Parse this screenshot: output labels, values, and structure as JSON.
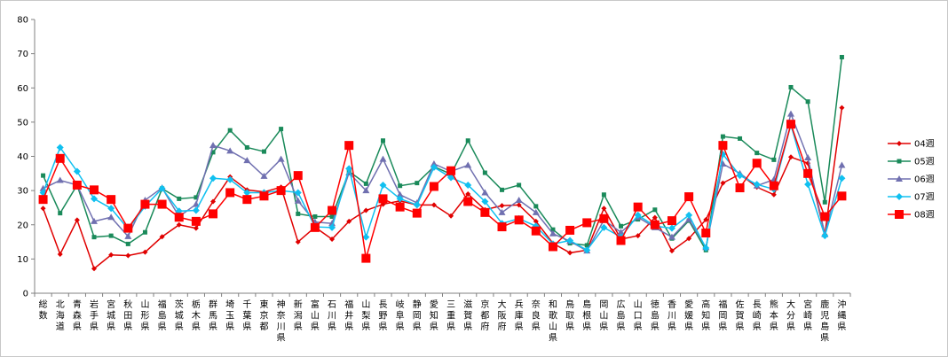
{
  "chart_data": {
    "type": "line",
    "title": "",
    "xlabel": "",
    "ylabel": "",
    "ylim": [
      0,
      80
    ],
    "yticks": [
      0,
      10,
      20,
      30,
      40,
      50,
      60,
      70,
      80
    ],
    "grid": false,
    "legend_position": "right",
    "categories": [
      "総数",
      "北海道",
      "青森県",
      "岩手県",
      "宮城県",
      "秋田県",
      "山形県",
      "福島県",
      "茨城県",
      "栃木県",
      "群馬県",
      "埼玉県",
      "千葉県",
      "東京都",
      "神奈川県",
      "新潟県",
      "富山県",
      "石川県",
      "福井県",
      "山梨県",
      "長野県",
      "岐阜県",
      "静岡県",
      "愛知県",
      "三重県",
      "滋賀県",
      "京都府",
      "大阪府",
      "兵庫県",
      "奈良県",
      "和歌山県",
      "鳥取県",
      "島根県",
      "岡山県",
      "広島県",
      "山口県",
      "徳島県",
      "香川県",
      "愛媛県",
      "高知県",
      "福岡県",
      "佐賀県",
      "長崎県",
      "熊本県",
      "大分県",
      "宮崎県",
      "鹿児島県",
      "沖縄県"
    ],
    "series": [
      {
        "name": "04週",
        "color": "#e00000",
        "marker": "diamond-small",
        "values": [
          24.8,
          11.4,
          21.4,
          7.2,
          11.2,
          11,
          12,
          16.5,
          20,
          19,
          26.8,
          34,
          30.2,
          29.6,
          31,
          15,
          19.3,
          15.8,
          21,
          24.2,
          26,
          27,
          25.8,
          25.8,
          22.6,
          29,
          24.4,
          25.6,
          25.8,
          21,
          14.6,
          11.8,
          12.6,
          24.8,
          15.8,
          16.8,
          22.1,
          12.4,
          16,
          21.5,
          32.2,
          34.8,
          31,
          28.8,
          39.8,
          38,
          17.2,
          54.2
        ]
      },
      {
        "name": "05週",
        "color": "#1a8a5a",
        "marker": "square-small",
        "values": [
          34.4,
          23.4,
          31.6,
          16.4,
          16.8,
          14.4,
          17.8,
          30.6,
          27.6,
          28,
          41.2,
          47.6,
          42.6,
          41.4,
          48,
          23.2,
          22.4,
          22.4,
          35.6,
          32,
          44.6,
          31.4,
          32.2,
          37,
          34.8,
          44.6,
          35.2,
          30.2,
          31.6,
          25.4,
          18.6,
          14.6,
          14,
          28.8,
          19.6,
          21.6,
          24.4,
          16,
          21.2,
          12.6,
          45.8,
          45.2,
          41,
          39,
          60.2,
          56,
          26.6,
          69
        ]
      },
      {
        "name": "06週",
        "color": "#7070b0",
        "marker": "triangle",
        "values": [
          30.6,
          33,
          31.6,
          21,
          22.2,
          16.6,
          27.2,
          30.8,
          22.4,
          26,
          43.2,
          41.6,
          38.8,
          34.2,
          39.2,
          27,
          20.8,
          20.4,
          35.2,
          30,
          39.2,
          28.8,
          26.4,
          37.8,
          35.6,
          37.4,
          29.4,
          23.6,
          27.2,
          23.6,
          17.4,
          15.2,
          12.4,
          21.4,
          17.8,
          22.2,
          19.2,
          16.4,
          21.6,
          13.4,
          37.8,
          35,
          31.4,
          33.2,
          52.4,
          39.6,
          17.2,
          37.4
        ]
      },
      {
        "name": "07週",
        "color": "#10c0f0",
        "marker": "diamond",
        "values": [
          29.4,
          42.6,
          35.6,
          27.6,
          24.8,
          18.8,
          25.4,
          30.6,
          24,
          24.2,
          33.6,
          33.2,
          29.4,
          29.4,
          30,
          29.4,
          19.4,
          19.2,
          36.4,
          16.4,
          31.6,
          27.6,
          25.8,
          36.8,
          33.8,
          31.6,
          26.8,
          20.4,
          21.8,
          19.6,
          14.4,
          15.4,
          12.6,
          19.2,
          16.4,
          22.8,
          19.6,
          19,
          22.8,
          13.2,
          40.6,
          34.4,
          31.8,
          30.4,
          49.2,
          31.8,
          16.8,
          33.6
        ]
      },
      {
        "name": "08週",
        "color": "#ff0000",
        "marker": "square",
        "values": [
          27.4,
          39.4,
          31.6,
          30.2,
          27.4,
          19,
          26,
          26,
          22.2,
          21,
          23.2,
          29.4,
          27.4,
          28.4,
          30,
          34.4,
          19.2,
          24.2,
          43.2,
          10.2,
          27.6,
          25.2,
          23.4,
          31.2,
          35.8,
          26.8,
          23.6,
          19.4,
          21.4,
          18.2,
          13.6,
          18.4,
          20.6,
          21.8,
          15.4,
          25.2,
          20,
          21.2,
          28.2,
          17.6,
          43.2,
          30.8,
          38,
          31.4,
          49.4,
          35,
          22.4,
          28.4
        ]
      }
    ]
  }
}
